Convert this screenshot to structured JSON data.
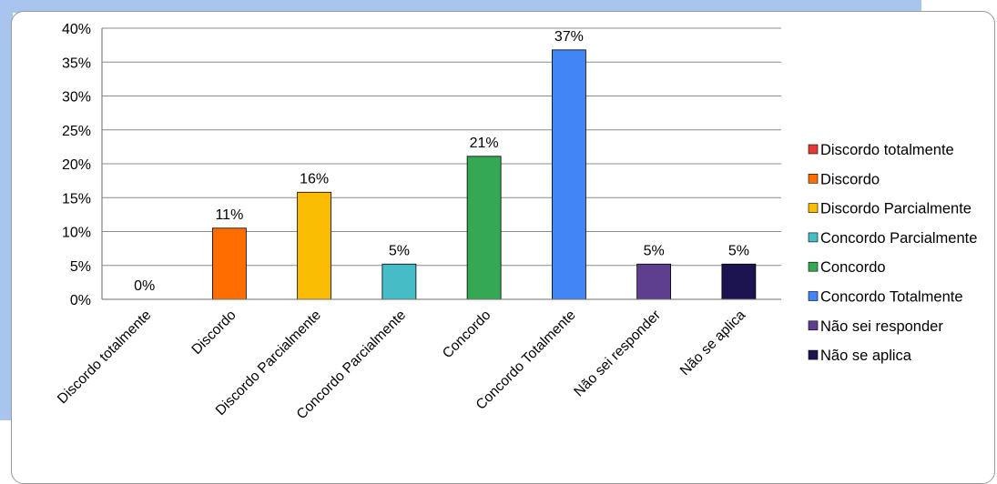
{
  "chart_data": {
    "type": "bar",
    "categories": [
      "Discordo totalmente",
      "Discordo",
      "Discordo Parcialmente",
      "Concordo Parcialmente",
      "Concordo",
      "Concordo Totalmente",
      "Não sei responder",
      "Não se aplica"
    ],
    "values": [
      0,
      10.5,
      15.8,
      5.2,
      21.1,
      36.8,
      5.2,
      5.2
    ],
    "data_labels": [
      "0%",
      "11%",
      "16%",
      "5%",
      "21%",
      "37%",
      "5%",
      "5%"
    ],
    "colors": [
      "#e53935",
      "#ff6d00",
      "#fbbc04",
      "#46bdc6",
      "#34a853",
      "#4285f4",
      "#5e3f8f",
      "#1c1450"
    ],
    "y_ticks": [
      "0%",
      "5%",
      "10%",
      "15%",
      "20%",
      "25%",
      "30%",
      "35%",
      "40%"
    ],
    "ylim": [
      0,
      40
    ],
    "grid": true,
    "legend_position": "right",
    "legend": [
      "Discordo totalmente",
      "Discordo",
      "Discordo Parcialmente",
      "Concordo Parcialmente",
      "Concordo",
      "Concordo Totalmente",
      "Não sei responder",
      "Não se aplica"
    ]
  }
}
